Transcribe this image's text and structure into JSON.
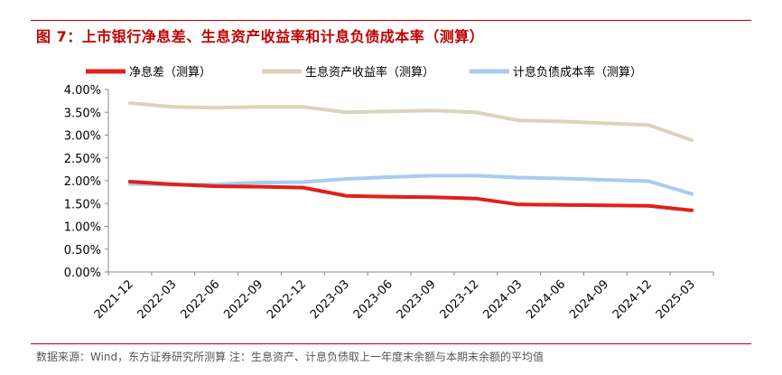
{
  "figure": {
    "title": "图 7：上市银行净息差、生息资产收益率和计息负债成本率（测算）",
    "source_note": "数据来源：Wind，东方证券研究所测算 注：生息资产、计息负债取上一年度末余额与本期末余额的平均值"
  },
  "colors": {
    "title": "#c00000",
    "rule": "#c00000",
    "series": [
      "#e0201b",
      "#dcd3bf",
      "#a9cbf1"
    ]
  },
  "chart_data": {
    "type": "line",
    "title": "",
    "xlabel": "",
    "ylabel": "",
    "x": [
      "2021-12",
      "2022-03",
      "2022-06",
      "2022-09",
      "2022-12",
      "2023-03",
      "2023-06",
      "2023-09",
      "2023-12",
      "2024-03",
      "2024-06",
      "2024-09",
      "2024-12",
      "2025-03"
    ],
    "ylim": [
      0,
      4
    ],
    "y_ticks": [
      "0.00%",
      "0.50%",
      "1.00%",
      "1.50%",
      "2.00%",
      "2.50%",
      "3.00%",
      "3.50%",
      "4.00%"
    ],
    "grid": false,
    "legend_position": "top",
    "series": [
      {
        "name": "净息差（测算）",
        "values": [
          1.98,
          1.92,
          1.88,
          1.87,
          1.85,
          1.67,
          1.65,
          1.64,
          1.61,
          1.48,
          1.47,
          1.46,
          1.45,
          1.35
        ]
      },
      {
        "name": "生息资产收益率（测算）",
        "values": [
          3.7,
          3.62,
          3.6,
          3.62,
          3.62,
          3.5,
          3.52,
          3.54,
          3.5,
          3.32,
          3.3,
          3.26,
          3.22,
          2.89
        ]
      },
      {
        "name": "计息负债成本率（测算）",
        "values": [
          1.93,
          1.91,
          1.92,
          1.96,
          1.97,
          2.04,
          2.08,
          2.11,
          2.11,
          2.07,
          2.05,
          2.02,
          1.99,
          1.71
        ]
      }
    ]
  }
}
